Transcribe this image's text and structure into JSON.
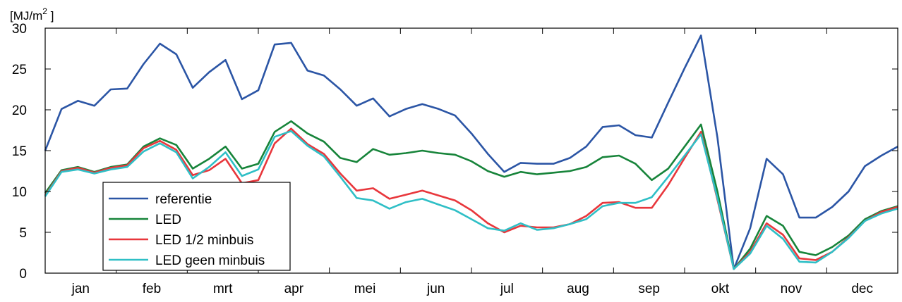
{
  "chart_data": {
    "type": "line",
    "unit_label": {
      "prefix": "[MJ/m",
      "sup": "2",
      "suffix": " ]"
    },
    "ylim": [
      0,
      30
    ],
    "yticks": [
      0,
      5,
      10,
      15,
      20,
      25,
      30
    ],
    "ytick_labels": [
      "0",
      "5",
      "10",
      "15",
      "20",
      "25",
      "30"
    ],
    "grid": false,
    "legend_position": "bottom-left",
    "months": [
      "jan",
      "feb",
      "mrt",
      "apr",
      "mei",
      "jun",
      "jul",
      "aug",
      "sep",
      "okt",
      "nov",
      "dec"
    ],
    "weeks_count": 53,
    "series": [
      {
        "name": "referentie",
        "color": "#2b55a5",
        "values": [
          15.0,
          20.1,
          21.1,
          20.5,
          22.5,
          22.6,
          25.6,
          28.1,
          26.8,
          22.7,
          24.6,
          26.1,
          21.3,
          22.4,
          28.0,
          28.2,
          24.8,
          24.2,
          22.5,
          20.5,
          21.4,
          19.2,
          20.1,
          20.7,
          20.1,
          19.3,
          17.1,
          14.6,
          12.4,
          13.5,
          13.4,
          13.4,
          14.1,
          15.5,
          17.9,
          18.1,
          16.9,
          16.6,
          20.9,
          25.1,
          29.1,
          16.6,
          0.5,
          5.5,
          14.0,
          12.1,
          6.8,
          6.8,
          8.1,
          10.0,
          13.1,
          14.4,
          15.5
        ]
      },
      {
        "name": "LED",
        "color": "#17843a",
        "values": [
          9.8,
          12.6,
          13.0,
          12.4,
          13.0,
          13.3,
          15.5,
          16.5,
          15.7,
          12.8,
          14.0,
          15.5,
          12.8,
          13.4,
          17.3,
          18.6,
          17.1,
          16.1,
          14.1,
          13.6,
          15.2,
          14.5,
          14.7,
          15.0,
          14.7,
          14.5,
          13.7,
          12.5,
          11.8,
          12.4,
          12.1,
          12.3,
          12.5,
          13.0,
          14.2,
          14.4,
          13.4,
          11.4,
          12.8,
          15.5,
          18.2,
          10.0,
          0.5,
          3.0,
          7.0,
          5.8,
          2.6,
          2.2,
          3.2,
          4.6,
          6.6,
          7.6,
          8.2
        ]
      },
      {
        "name": "LED 1/2 minbuis",
        "color": "#e8373c",
        "values": [
          9.5,
          12.5,
          12.9,
          12.3,
          12.9,
          13.2,
          15.3,
          16.2,
          15.1,
          12.0,
          12.6,
          14.0,
          11.0,
          11.4,
          15.9,
          17.7,
          15.8,
          14.6,
          12.2,
          10.1,
          10.4,
          9.1,
          9.6,
          10.1,
          9.5,
          8.9,
          7.7,
          6.1,
          5.0,
          5.8,
          5.6,
          5.6,
          6.0,
          7.0,
          8.6,
          8.7,
          8.0,
          8.0,
          10.8,
          14.1,
          17.3,
          9.0,
          0.5,
          2.6,
          6.1,
          4.7,
          1.8,
          1.6,
          2.6,
          4.4,
          6.4,
          7.5,
          8.1
        ]
      },
      {
        "name": "LED geen minbuis",
        "color": "#2fbfc6",
        "values": [
          9.4,
          12.4,
          12.7,
          12.2,
          12.7,
          13.0,
          14.9,
          15.9,
          14.8,
          11.6,
          13.0,
          14.8,
          11.9,
          12.7,
          16.7,
          17.4,
          15.6,
          14.3,
          11.8,
          9.2,
          8.9,
          7.9,
          8.7,
          9.1,
          8.4,
          7.7,
          6.6,
          5.5,
          5.2,
          6.1,
          5.3,
          5.5,
          6.0,
          6.6,
          8.2,
          8.6,
          8.6,
          9.3,
          11.8,
          14.4,
          17.0,
          9.2,
          0.5,
          2.4,
          5.8,
          4.2,
          1.4,
          1.3,
          2.6,
          4.3,
          6.4,
          7.3,
          7.9
        ]
      }
    ]
  }
}
